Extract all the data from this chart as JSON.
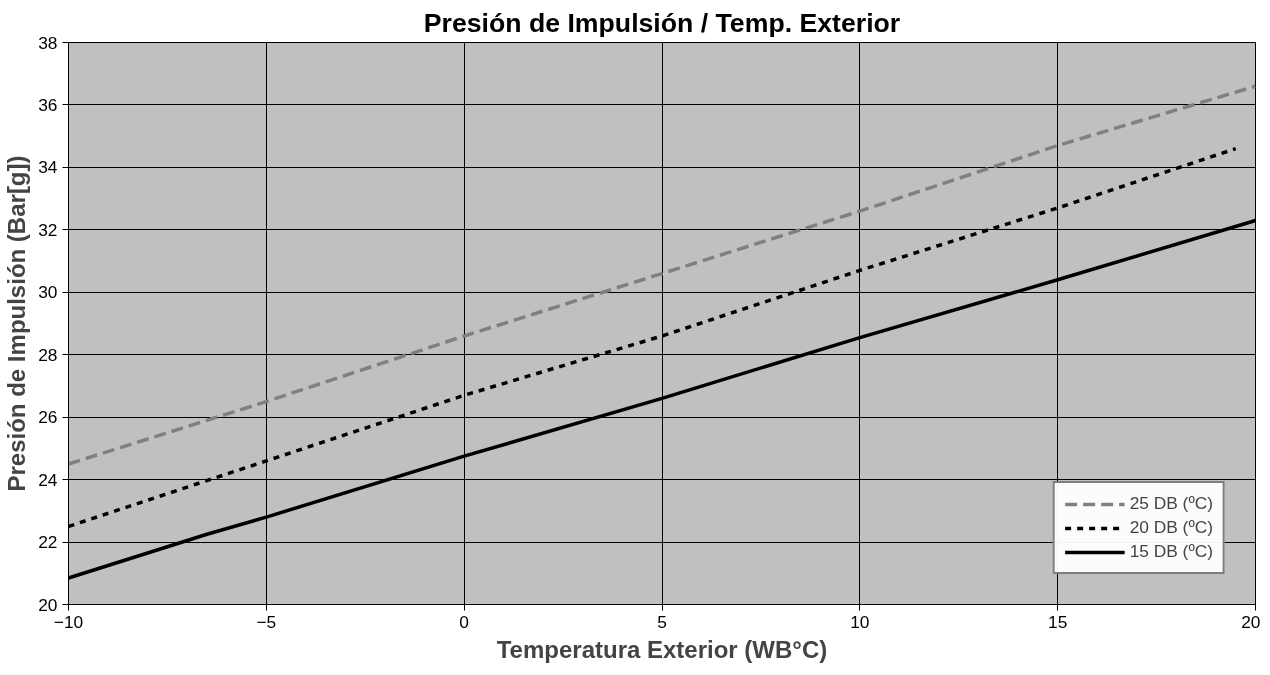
{
  "chart_data": {
    "type": "line",
    "title": "Presión de Impulsión / Temp. Exterior",
    "xlabel": "Temperatura Exterior (WB°C)",
    "ylabel": "Presión de Impulsión (Bar[g])",
    "xlim": [
      -10,
      20
    ],
    "xticks": [
      -10,
      -5,
      0,
      5,
      10,
      15,
      20
    ],
    "ylim": [
      20,
      38
    ],
    "yticks": [
      20,
      22,
      24,
      26,
      28,
      30,
      32,
      34,
      36,
      38
    ],
    "grid": true,
    "legend": "right",
    "series": [
      {
        "name": "25 DB (ºC)",
        "color": "#808080",
        "line_style": "dashed",
        "x": [
          -10,
          -5,
          0,
          5,
          10,
          15,
          20
        ],
        "values": [
          24.5,
          26.5,
          28.6,
          30.6,
          32.6,
          34.7,
          36.6
        ]
      },
      {
        "name": "20 DB (ºC)",
        "color": "#000000",
        "line_style": "dotted",
        "x": [
          -10,
          -5,
          0,
          5,
          10,
          15,
          19.5
        ],
        "values": [
          22.5,
          24.6,
          26.7,
          28.6,
          30.7,
          32.7,
          34.6
        ]
      },
      {
        "name": "15 DB (ºC)",
        "color": "#000000",
        "line_style": "solid",
        "x": [
          -10,
          -6.5,
          -5,
          0,
          5,
          10,
          15,
          20
        ],
        "values": [
          20.85,
          22.25,
          22.8,
          24.75,
          26.6,
          28.55,
          30.4,
          32.3
        ]
      }
    ]
  }
}
